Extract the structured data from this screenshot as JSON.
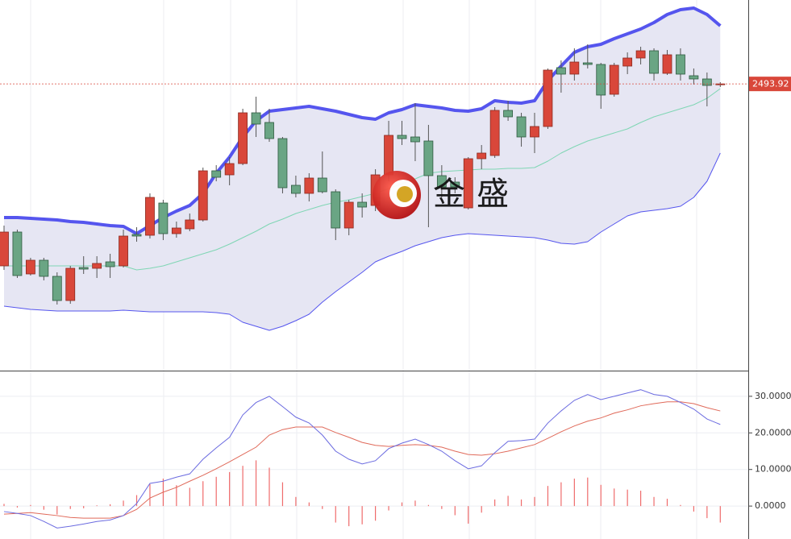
{
  "chart_data": [
    {
      "type": "candlestick",
      "up_color": "#d9473a",
      "down_color": "#6aa584",
      "band_color": "#5555ee",
      "middle_color": "#7fd6b4",
      "fill_color": "#e6e6f3",
      "ylim": [
        2316,
        2546
      ],
      "last_price": 2493.92,
      "watermark": "金盛",
      "open": [
        2381,
        2402,
        2376,
        2384.5,
        2374.5,
        2359.5,
        2380,
        2379.5,
        2383.5,
        2381,
        2400.5,
        2400,
        2420,
        2401,
        2404,
        2409.5,
        2440,
        2437.5,
        2444.5,
        2476,
        2470,
        2460,
        2431,
        2426,
        2435.5,
        2427,
        2404.5,
        2420.5,
        2418.5,
        2437.5,
        2462,
        2461,
        2458.5,
        2437,
        2433,
        2417,
        2447.5,
        2449.5,
        2477.5,
        2473.5,
        2461,
        2467.5,
        2504,
        2500,
        2507,
        2506,
        2487.5,
        2505,
        2510,
        2514.5,
        2500.5,
        2512,
        2499,
        2497,
        2493.4
      ],
      "close": [
        2402,
        2375,
        2384.5,
        2374.5,
        2359.5,
        2379.5,
        2379,
        2382.5,
        2380.5,
        2399.5,
        2399.5,
        2423.5,
        2401,
        2404.5,
        2409.5,
        2440,
        2436,
        2444.5,
        2476,
        2469,
        2460,
        2429.5,
        2426,
        2435.5,
        2427,
        2404.5,
        2420.5,
        2417.5,
        2437.5,
        2462,
        2460,
        2458,
        2437,
        2430,
        2430,
        2447.5,
        2451,
        2477.5,
        2473.5,
        2461,
        2467.5,
        2502.5,
        2500,
        2507.5,
        2506,
        2487,
        2505.5,
        2510,
        2514.5,
        2500.5,
        2512,
        2500,
        2497,
        2493,
        2493.92
      ],
      "high": [
        2406,
        2403.5,
        2386,
        2386,
        2377,
        2381,
        2387,
        2387,
        2388.5,
        2403.5,
        2405,
        2426,
        2422,
        2408.5,
        2413.5,
        2442,
        2443.5,
        2448.5,
        2478.5,
        2486,
        2478.5,
        2461,
        2437,
        2438.5,
        2452,
        2428.5,
        2422,
        2426,
        2441,
        2471,
        2471,
        2482,
        2468.5,
        2443.5,
        2436,
        2448.5,
        2456,
        2479.5,
        2483.5,
        2476,
        2476,
        2503.5,
        2508.5,
        2516,
        2518.5,
        2507,
        2507,
        2513.5,
        2517,
        2516,
        2515,
        2516,
        2503.5,
        2501,
        2495
      ],
      "low": [
        2378.5,
        2373.5,
        2375,
        2372,
        2357,
        2357.5,
        2376,
        2373.5,
        2373.5,
        2380,
        2396,
        2398,
        2397,
        2398.5,
        2402.5,
        2408.5,
        2433.5,
        2431,
        2443.5,
        2461,
        2458,
        2426,
        2423.5,
        2421,
        2426,
        2397,
        2400,
        2411,
        2415,
        2433.5,
        2456,
        2446,
        2405,
        2423.5,
        2426,
        2416,
        2441,
        2448,
        2471,
        2455,
        2451,
        2466,
        2488.5,
        2496,
        2503.5,
        2478.5,
        2486,
        2500,
        2506,
        2496,
        2499.5,
        2496,
        2493.5,
        2480,
        2492
      ],
      "upper_band": [
        2411,
        2411,
        2410.5,
        2410,
        2409.5,
        2408.5,
        2408,
        2407,
        2406,
        2405.5,
        2401,
        2406,
        2411,
        2415,
        2418.5,
        2426,
        2438.5,
        2448.5,
        2461,
        2471,
        2477,
        2478,
        2479,
        2480,
        2478.5,
        2477,
        2475,
        2473,
        2472,
        2476,
        2478,
        2481,
        2480,
        2479,
        2477.5,
        2477,
        2478.5,
        2483.5,
        2482.5,
        2482,
        2483.5,
        2496,
        2505,
        2513.5,
        2517,
        2518.5,
        2522,
        2525,
        2528,
        2532,
        2537,
        2540,
        2541,
        2537,
        2530
      ],
      "middle_band": [
        2381,
        2381,
        2381,
        2381,
        2381,
        2381,
        2381,
        2381,
        2381,
        2381,
        2378.5,
        2379.5,
        2381,
        2383.5,
        2386,
        2388.5,
        2391,
        2394.5,
        2398.5,
        2402.5,
        2407,
        2410,
        2413.5,
        2416,
        2418.5,
        2420.5,
        2422,
        2424,
        2426,
        2429,
        2432,
        2435,
        2438.5,
        2439.5,
        2440,
        2440.5,
        2441,
        2441,
        2441.5,
        2441.5,
        2442,
        2446,
        2451,
        2455,
        2458.5,
        2461,
        2463.5,
        2466,
        2470,
        2473.5,
        2476,
        2478.5,
        2481,
        2485,
        2491
      ],
      "lower_band": [
        2356,
        2355,
        2354,
        2353.5,
        2353,
        2353,
        2353,
        2353,
        2353,
        2353.5,
        2353,
        2352.5,
        2352.5,
        2352.5,
        2352.5,
        2352.5,
        2352,
        2351,
        2346,
        2343.5,
        2341,
        2343.5,
        2347,
        2351,
        2358.5,
        2365,
        2371,
        2377,
        2383.5,
        2387,
        2390,
        2393.5,
        2396,
        2398.5,
        2400,
        2401,
        2400.5,
        2400,
        2399.5,
        2399,
        2398.5,
        2397,
        2395,
        2394.5,
        2396,
        2402,
        2407,
        2412,
        2414.5,
        2415.5,
        2416.5,
        2418,
        2423.5,
        2433.5,
        2451
      ]
    },
    {
      "type": "macd",
      "ylim": [
        -9,
        36.8
      ],
      "yticks": [
        {
          "value": 30,
          "label": "30.0000"
        },
        {
          "value": 20,
          "label": "20.0000"
        },
        {
          "value": 10,
          "label": "10.0000"
        },
        {
          "value": 0,
          "label": "0.0000"
        }
      ],
      "grid": true,
      "dif": {
        "color": "#6b6be0",
        "values": [
          -1.5,
          -2.0,
          -2.6,
          -4.2,
          -6.0,
          -5.5,
          -4.9,
          -4.2,
          -3.8,
          -2.6,
          0.7,
          6.2,
          6.8,
          7.9,
          8.8,
          12.8,
          15.9,
          18.8,
          24.9,
          28.3,
          30.0,
          27.2,
          24.3,
          22.7,
          19.4,
          15.0,
          12.8,
          11.5,
          12.4,
          15.7,
          17.2,
          18.3,
          16.8,
          15.0,
          12.4,
          10.2,
          11.0,
          14.6,
          17.7,
          17.9,
          18.3,
          22.7,
          26.0,
          28.9,
          30.5,
          29.1,
          30.0,
          30.9,
          31.8,
          30.5,
          30.0,
          28.3,
          26.5,
          23.8,
          22.3
        ]
      },
      "dea": {
        "color": "#e06a5a",
        "values": [
          -2.2,
          -2.0,
          -1.8,
          -2.2,
          -2.6,
          -3.1,
          -3.3,
          -3.3,
          -3.3,
          -2.6,
          -0.9,
          2.2,
          3.8,
          5.1,
          6.8,
          8.4,
          10.2,
          12.1,
          14.1,
          16.1,
          19.4,
          20.9,
          21.6,
          21.6,
          21.6,
          20.1,
          18.8,
          17.4,
          16.6,
          16.3,
          16.6,
          16.8,
          16.6,
          16.1,
          15.0,
          14.1,
          13.9,
          14.3,
          15.0,
          15.9,
          16.8,
          18.5,
          20.3,
          21.9,
          23.2,
          24.1,
          25.4,
          26.3,
          27.4,
          28.0,
          28.5,
          28.5,
          28.0,
          26.9,
          26.0
        ]
      },
      "histogram": {
        "color": "#ef6b6b",
        "values": [
          0.6,
          -0.4,
          0.3,
          -1.0,
          -2.3,
          -0.8,
          -0.6,
          0.2,
          0.5,
          1.5,
          3.0,
          6.0,
          7.5,
          5.7,
          5.0,
          6.8,
          8.0,
          9.3,
          11.0,
          12.5,
          10.5,
          6.5,
          2.5,
          1.0,
          -0.8,
          -4.5,
          -5.5,
          -5.0,
          -4.0,
          -1.2,
          1.0,
          1.5,
          0.3,
          -0.8,
          -2.5,
          -4.8,
          -1.8,
          1.8,
          2.8,
          1.8,
          2.5,
          5.5,
          6.5,
          7.5,
          7.8,
          5.8,
          4.8,
          4.5,
          4.2,
          2.5,
          2.0,
          0.3,
          -1.5,
          -3.3,
          -4.5
        ]
      }
    }
  ]
}
